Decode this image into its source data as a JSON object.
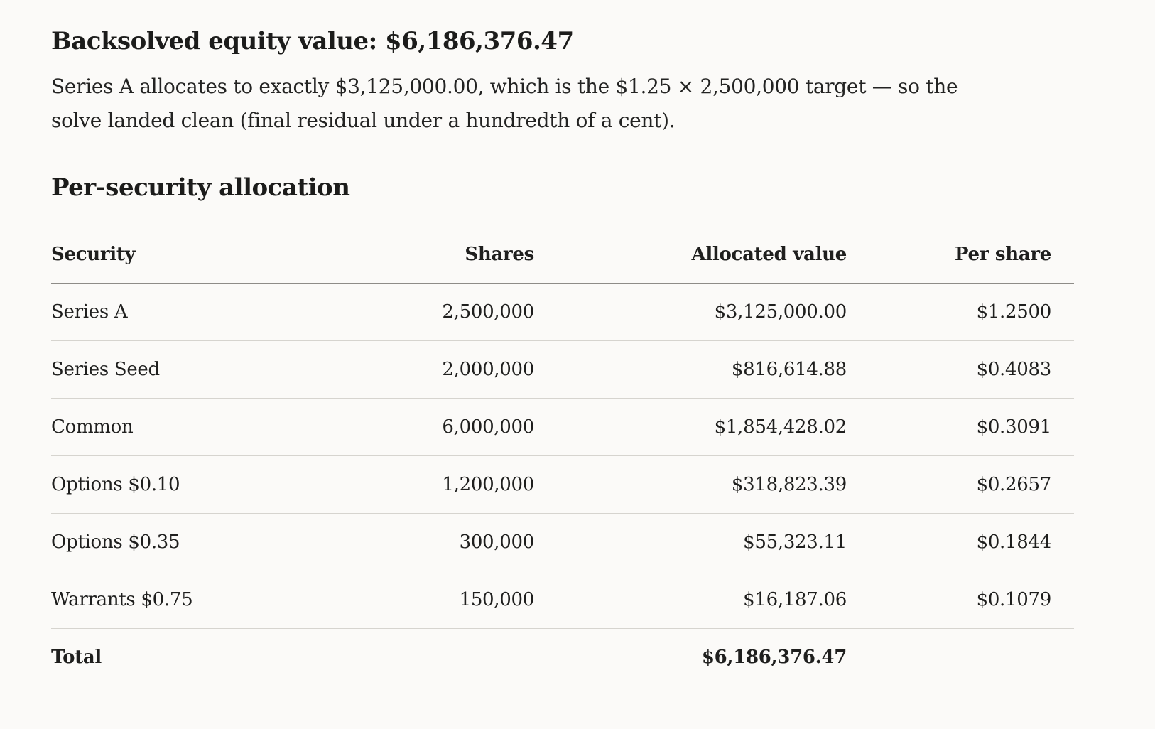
{
  "headline": "Backsolved equity value: $6,186,376.47",
  "summary": "Series A allocates to exactly $3,125,000.00, which is the $1.25 × 2,500,000 target — so the solve landed clean (final residual under a hundredth of a cent).",
  "section_title": "Per-security allocation",
  "table": {
    "headers": {
      "security": "Security",
      "shares": "Shares",
      "allocated_value": "Allocated value",
      "per_share": "Per share"
    },
    "rows": [
      {
        "security": "Series A",
        "shares": "2,500,000",
        "allocated_value": "$3,125,000.00",
        "per_share": "$1.2500"
      },
      {
        "security": "Series Seed",
        "shares": "2,000,000",
        "allocated_value": "$816,614.88",
        "per_share": "$0.4083"
      },
      {
        "security": "Common",
        "shares": "6,000,000",
        "allocated_value": "$1,854,428.02",
        "per_share": "$0.3091"
      },
      {
        "security": "Options $0.10",
        "shares": "1,200,000",
        "allocated_value": "$318,823.39",
        "per_share": "$0.2657"
      },
      {
        "security": "Options $0.35",
        "shares": "300,000",
        "allocated_value": "$55,323.11",
        "per_share": "$0.1844"
      },
      {
        "security": "Warrants $0.75",
        "shares": "150,000",
        "allocated_value": "$16,187.06",
        "per_share": "$0.1079"
      }
    ],
    "total": {
      "label": "Total",
      "allocated_value": "$6,186,376.47"
    }
  }
}
